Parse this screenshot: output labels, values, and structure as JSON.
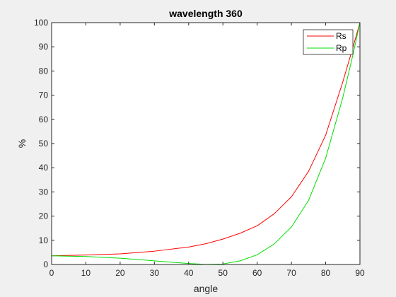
{
  "chart_data": {
    "type": "line",
    "title": "wavelength  360",
    "xlabel": "angle",
    "ylabel": "%",
    "xlim": [
      0,
      90
    ],
    "ylim": [
      0,
      100
    ],
    "xticks": [
      0,
      10,
      20,
      30,
      40,
      50,
      60,
      70,
      80,
      90
    ],
    "yticks": [
      0,
      10,
      20,
      30,
      40,
      50,
      60,
      70,
      80,
      90,
      100
    ],
    "grid": false,
    "legend_position": "top-right",
    "series": [
      {
        "name": "Rs",
        "color": "#ff0000",
        "x": [
          0,
          10,
          20,
          30,
          40,
          45,
          50,
          55,
          60,
          65,
          70,
          75,
          80,
          85,
          88,
          90
        ],
        "y": [
          3.6,
          3.9,
          4.4,
          5.5,
          7.2,
          8.6,
          10.5,
          12.9,
          16.0,
          21.0,
          28.0,
          38.5,
          53.5,
          75.5,
          90.0,
          100
        ]
      },
      {
        "name": "Rp",
        "color": "#00dd00",
        "x": [
          0,
          10,
          20,
          30,
          40,
          45,
          50,
          55,
          60,
          65,
          70,
          75,
          80,
          85,
          88,
          90
        ],
        "y": [
          3.6,
          3.3,
          2.6,
          1.5,
          0.4,
          0.05,
          0.2,
          1.5,
          4.0,
          8.5,
          15.5,
          26.5,
          44.0,
          69.0,
          87.0,
          100
        ]
      }
    ]
  }
}
